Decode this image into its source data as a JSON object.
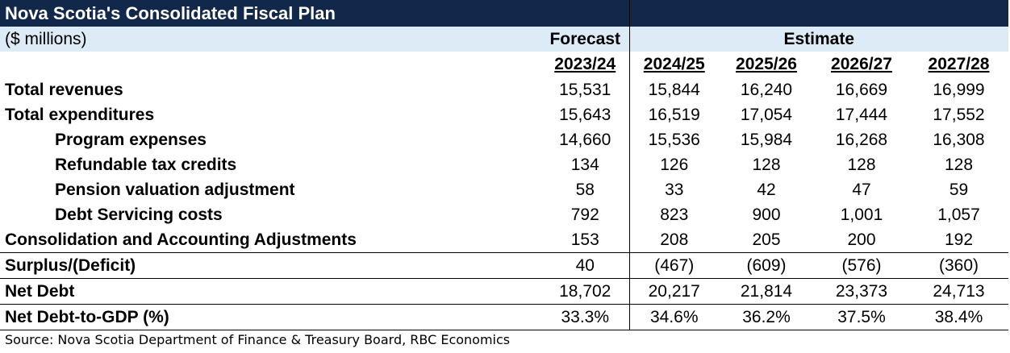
{
  "title": "Nova Scotia's Consolidated Fiscal Plan",
  "units": "($ millions)",
  "forecast_header": "Forecast",
  "estimate_header": "Estimate",
  "years": [
    "2023/24",
    "2024/25",
    "2025/26",
    "2026/27",
    "2027/28"
  ],
  "rows": [
    {
      "label": "Total revenues",
      "values": [
        "15,531",
        "15,844",
        "16,240",
        "16,669",
        "16,999"
      ]
    },
    {
      "label": "Total expenditures",
      "values": [
        "15,643",
        "16,519",
        "17,054",
        "17,444",
        "17,552"
      ]
    },
    {
      "label": "Program expenses",
      "values": [
        "14,660",
        "15,536",
        "15,984",
        "16,268",
        "16,308"
      ]
    },
    {
      "label": "Refundable tax credits",
      "values": [
        "134",
        "126",
        "128",
        "128",
        "128"
      ]
    },
    {
      "label": "Pension valuation adjustment",
      "values": [
        "58",
        "33",
        "42",
        "47",
        "59"
      ]
    },
    {
      "label": "Debt Servicing costs",
      "values": [
        "792",
        "823",
        "900",
        "1,001",
        "1,057"
      ]
    },
    {
      "label": "Consolidation and Accounting Adjustments",
      "values": [
        "153",
        "208",
        "205",
        "200",
        "192"
      ]
    },
    {
      "label": "Surplus/(Deficit)",
      "values": [
        "40",
        "(467)",
        "(609)",
        "(576)",
        "(360)"
      ]
    },
    {
      "label": "Net Debt",
      "values": [
        "18,702",
        "20,217",
        "21,814",
        "23,373",
        "24,713"
      ]
    },
    {
      "label": "Net Debt-to-GDP (%)",
      "values": [
        "33.3%",
        "34.6%",
        "36.2%",
        "37.5%",
        "38.4%"
      ]
    }
  ],
  "source": "Source: Nova Scotia Department of Finance & Treasury Board, RBC Economics"
}
